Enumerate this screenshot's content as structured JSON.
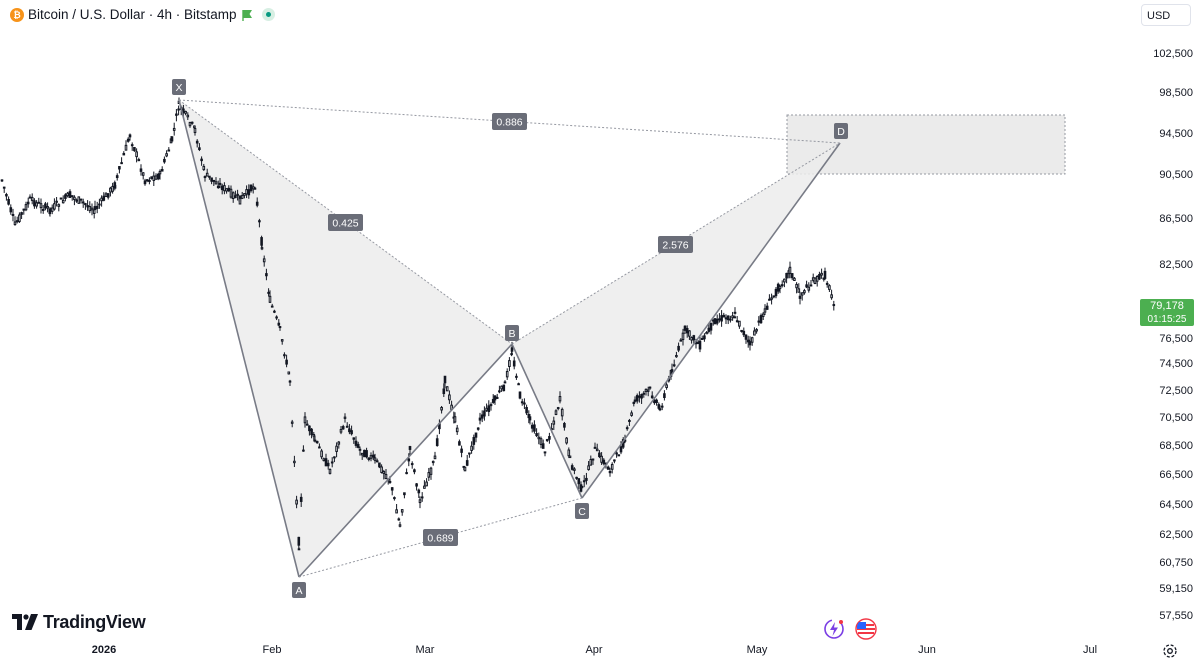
{
  "header": {
    "coin_icon": "bitcoin-icon",
    "coin_glyph": "₿",
    "symbol": "Bitcoin / U.S. Dollar · 4h · Bitstamp",
    "currency": "USD"
  },
  "brand": {
    "name": "TradingView"
  },
  "price_axis": {
    "ticks": [
      "102,500",
      "98,500",
      "94,500",
      "90,500",
      "86,500",
      "82,500",
      "76,500",
      "74,500",
      "72,500",
      "70,500",
      "68,500",
      "66,500",
      "64,500",
      "62,500",
      "60,750",
      "59,150",
      "57,550"
    ],
    "last_price": "79,178",
    "countdown": "01:15:25"
  },
  "time_axis": {
    "labels": [
      "2026",
      "Feb",
      "Mar",
      "Apr",
      "May",
      "Jun",
      "Jul"
    ]
  },
  "pattern": {
    "points": [
      "X",
      "A",
      "B",
      "C",
      "D"
    ],
    "ratios": {
      "xb": "0.425",
      "ac": "0.689",
      "bd": "2.576",
      "xd": "0.886"
    }
  },
  "colors": {
    "last_price_bg": "#4caf50",
    "pattern_fill": "#e9e9e9",
    "pattern_line": "#787b86",
    "candles": "#131722",
    "bitcoin": "#f7931a"
  },
  "icons": [
    "flag-icon",
    "market-status-icon",
    "lightning-icon",
    "us-flag-icon",
    "settings-icon"
  ]
}
